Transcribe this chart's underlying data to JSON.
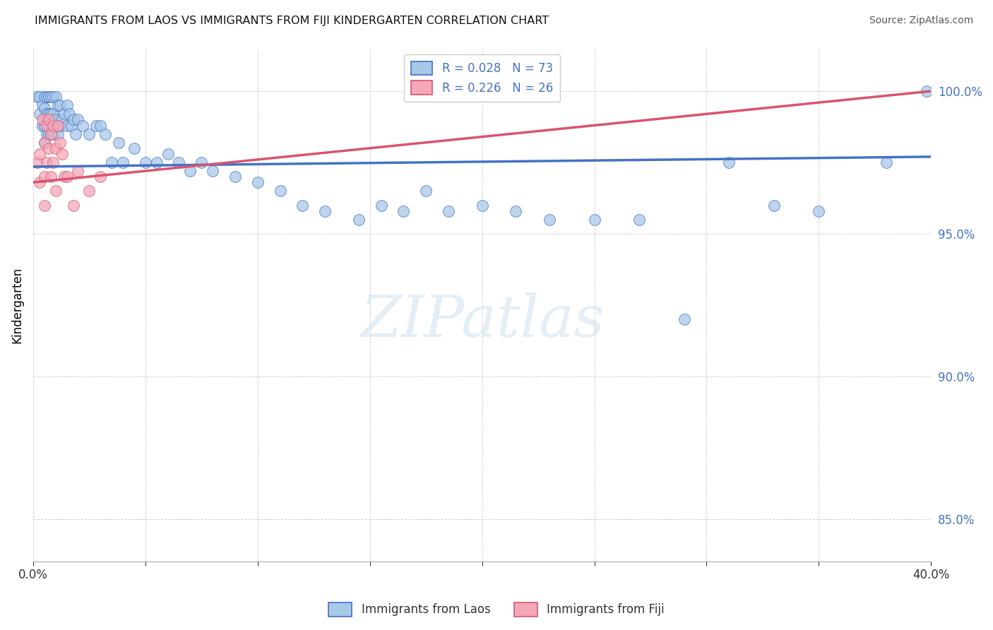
{
  "title": "IMMIGRANTS FROM LAOS VS IMMIGRANTS FROM FIJI KINDERGARTEN CORRELATION CHART",
  "source": "Source: ZipAtlas.com",
  "ylabel": "Kindergarten",
  "xlim": [
    0.0,
    0.4
  ],
  "ylim": [
    0.835,
    1.015
  ],
  "yticks": [
    0.85,
    0.9,
    0.95,
    1.0
  ],
  "ytick_labels": [
    "85.0%",
    "90.0%",
    "95.0%",
    "100.0%"
  ],
  "xticks": [
    0.0,
    0.05,
    0.1,
    0.15,
    0.2,
    0.25,
    0.3,
    0.35,
    0.4
  ],
  "xtick_labels": [
    "0.0%",
    "",
    "",
    "",
    "",
    "",
    "",
    "",
    "40.0%"
  ],
  "legend_laos": "Immigrants from Laos",
  "legend_fiji": "Immigrants from Fiji",
  "color_laos": "#a8c8e8",
  "color_laos_line": "#4472c4",
  "color_fiji": "#f4a7b9",
  "color_fiji_line": "#d9546e",
  "laos_x": [
    0.002,
    0.003,
    0.003,
    0.004,
    0.004,
    0.005,
    0.005,
    0.005,
    0.005,
    0.006,
    0.006,
    0.006,
    0.007,
    0.007,
    0.007,
    0.008,
    0.008,
    0.008,
    0.009,
    0.009,
    0.009,
    0.01,
    0.01,
    0.011,
    0.011,
    0.012,
    0.012,
    0.013,
    0.014,
    0.015,
    0.015,
    0.016,
    0.017,
    0.018,
    0.019,
    0.02,
    0.022,
    0.025,
    0.028,
    0.03,
    0.032,
    0.035,
    0.038,
    0.04,
    0.045,
    0.05,
    0.055,
    0.06,
    0.065,
    0.07,
    0.075,
    0.08,
    0.09,
    0.1,
    0.11,
    0.12,
    0.13,
    0.145,
    0.155,
    0.165,
    0.175,
    0.185,
    0.2,
    0.215,
    0.23,
    0.25,
    0.27,
    0.29,
    0.31,
    0.33,
    0.35,
    0.38,
    0.398
  ],
  "laos_y": [
    0.998,
    0.998,
    0.992,
    0.995,
    0.988,
    0.998,
    0.994,
    0.988,
    0.982,
    0.998,
    0.992,
    0.985,
    0.998,
    0.992,
    0.985,
    0.998,
    0.992,
    0.985,
    0.998,
    0.992,
    0.985,
    0.998,
    0.99,
    0.995,
    0.985,
    0.995,
    0.988,
    0.99,
    0.992,
    0.995,
    0.988,
    0.992,
    0.988,
    0.99,
    0.985,
    0.99,
    0.988,
    0.985,
    0.988,
    0.988,
    0.985,
    0.975,
    0.982,
    0.975,
    0.98,
    0.975,
    0.975,
    0.978,
    0.975,
    0.972,
    0.975,
    0.972,
    0.97,
    0.968,
    0.965,
    0.96,
    0.958,
    0.955,
    0.96,
    0.958,
    0.965,
    0.958,
    0.96,
    0.958,
    0.955,
    0.955,
    0.955,
    0.92,
    0.975,
    0.96,
    0.958,
    0.975,
    1.0
  ],
  "fiji_x": [
    0.002,
    0.003,
    0.003,
    0.004,
    0.005,
    0.005,
    0.005,
    0.006,
    0.006,
    0.007,
    0.007,
    0.008,
    0.008,
    0.009,
    0.009,
    0.01,
    0.01,
    0.011,
    0.012,
    0.013,
    0.014,
    0.015,
    0.018,
    0.02,
    0.025,
    0.03
  ],
  "fiji_y": [
    0.975,
    0.968,
    0.978,
    0.99,
    0.982,
    0.97,
    0.96,
    0.988,
    0.975,
    0.99,
    0.98,
    0.985,
    0.97,
    0.988,
    0.975,
    0.98,
    0.965,
    0.988,
    0.982,
    0.978,
    0.97,
    0.97,
    0.96,
    0.972,
    0.965,
    0.97
  ]
}
